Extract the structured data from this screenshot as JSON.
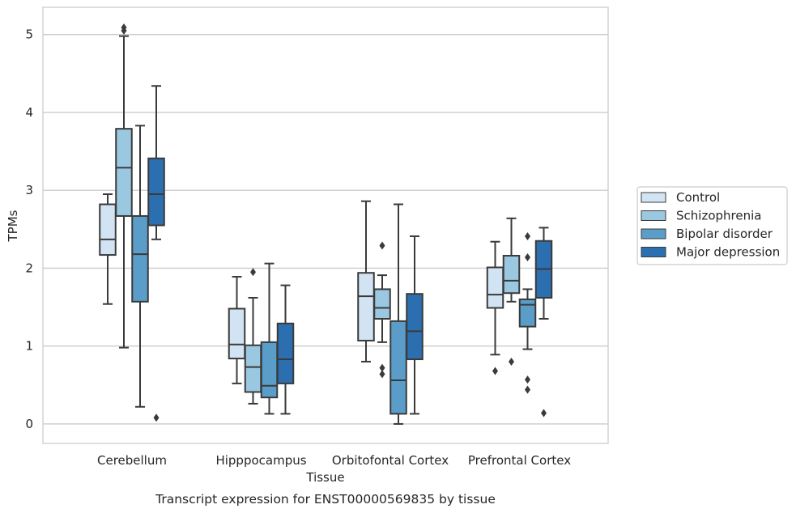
{
  "chart_data": {
    "type": "box",
    "title": "Transcript expression for ENST00000569835 by tissue",
    "xlabel": "Tissue",
    "ylabel": "TPMs",
    "ylim": [
      -0.25,
      5.35
    ],
    "yticks": [
      "0",
      "1",
      "2",
      "3",
      "4",
      "5"
    ],
    "grid": "horizontal",
    "legend_position": "right",
    "categories": [
      "Cerebellum",
      "Hipppocampus",
      "Orbitofontal Cortex",
      "Prefrontal Cortex"
    ],
    "series": [
      {
        "name": "Control",
        "color": "#d2e3f3",
        "boxes": [
          {
            "whislo": 1.54,
            "q1": 2.17,
            "med": 2.37,
            "q3": 2.82,
            "whishi": 2.95,
            "fliers": []
          },
          {
            "whislo": 0.52,
            "q1": 0.84,
            "med": 1.02,
            "q3": 1.48,
            "whishi": 1.89,
            "fliers": []
          },
          {
            "whislo": 0.8,
            "q1": 1.07,
            "med": 1.64,
            "q3": 1.94,
            "whishi": 2.86,
            "fliers": []
          },
          {
            "whislo": 0.89,
            "q1": 1.49,
            "med": 1.66,
            "q3": 2.01,
            "whishi": 2.34,
            "fliers": [
              0.68
            ]
          }
        ]
      },
      {
        "name": "Schizophrenia",
        "color": "#9ac8e0",
        "boxes": [
          {
            "whislo": 0.98,
            "q1": 2.67,
            "med": 3.29,
            "q3": 3.79,
            "whishi": 4.98,
            "fliers": [
              5.05,
              5.09
            ]
          },
          {
            "whislo": 0.26,
            "q1": 0.41,
            "med": 0.73,
            "q3": 1.01,
            "whishi": 1.62,
            "fliers": [
              1.95
            ]
          },
          {
            "whislo": 1.05,
            "q1": 1.35,
            "med": 1.49,
            "q3": 1.73,
            "whishi": 1.91,
            "fliers": [
              0.64,
              0.72,
              2.29
            ]
          },
          {
            "whislo": 1.57,
            "q1": 1.68,
            "med": 1.84,
            "q3": 2.16,
            "whishi": 2.64,
            "fliers": [
              0.8
            ]
          }
        ]
      },
      {
        "name": "Bipolar disorder",
        "color": "#5a9dc9",
        "boxes": [
          {
            "whislo": 0.22,
            "q1": 1.57,
            "med": 2.18,
            "q3": 2.67,
            "whishi": 3.83,
            "fliers": []
          },
          {
            "whislo": 0.13,
            "q1": 0.34,
            "med": 0.49,
            "q3": 1.05,
            "whishi": 2.06,
            "fliers": []
          },
          {
            "whislo": 0.0,
            "q1": 0.13,
            "med": 0.56,
            "q3": 1.32,
            "whishi": 2.82,
            "fliers": []
          },
          {
            "whislo": 0.96,
            "q1": 1.25,
            "med": 1.53,
            "q3": 1.6,
            "whishi": 1.73,
            "fliers": [
              0.44,
              0.57,
              2.14,
              2.41
            ]
          }
        ]
      },
      {
        "name": "Major depression",
        "color": "#2c6fb0",
        "boxes": [
          {
            "whislo": 2.37,
            "q1": 2.55,
            "med": 2.95,
            "q3": 3.41,
            "whishi": 4.34,
            "fliers": [
              0.08
            ]
          },
          {
            "whislo": 0.13,
            "q1": 0.52,
            "med": 0.83,
            "q3": 1.29,
            "whishi": 1.78,
            "fliers": []
          },
          {
            "whislo": 0.13,
            "q1": 0.83,
            "med": 1.19,
            "q3": 1.67,
            "whishi": 2.41,
            "fliers": []
          },
          {
            "whislo": 1.35,
            "q1": 1.62,
            "med": 1.99,
            "q3": 2.35,
            "whishi": 2.52,
            "fliers": [
              0.14
            ]
          }
        ]
      }
    ]
  }
}
